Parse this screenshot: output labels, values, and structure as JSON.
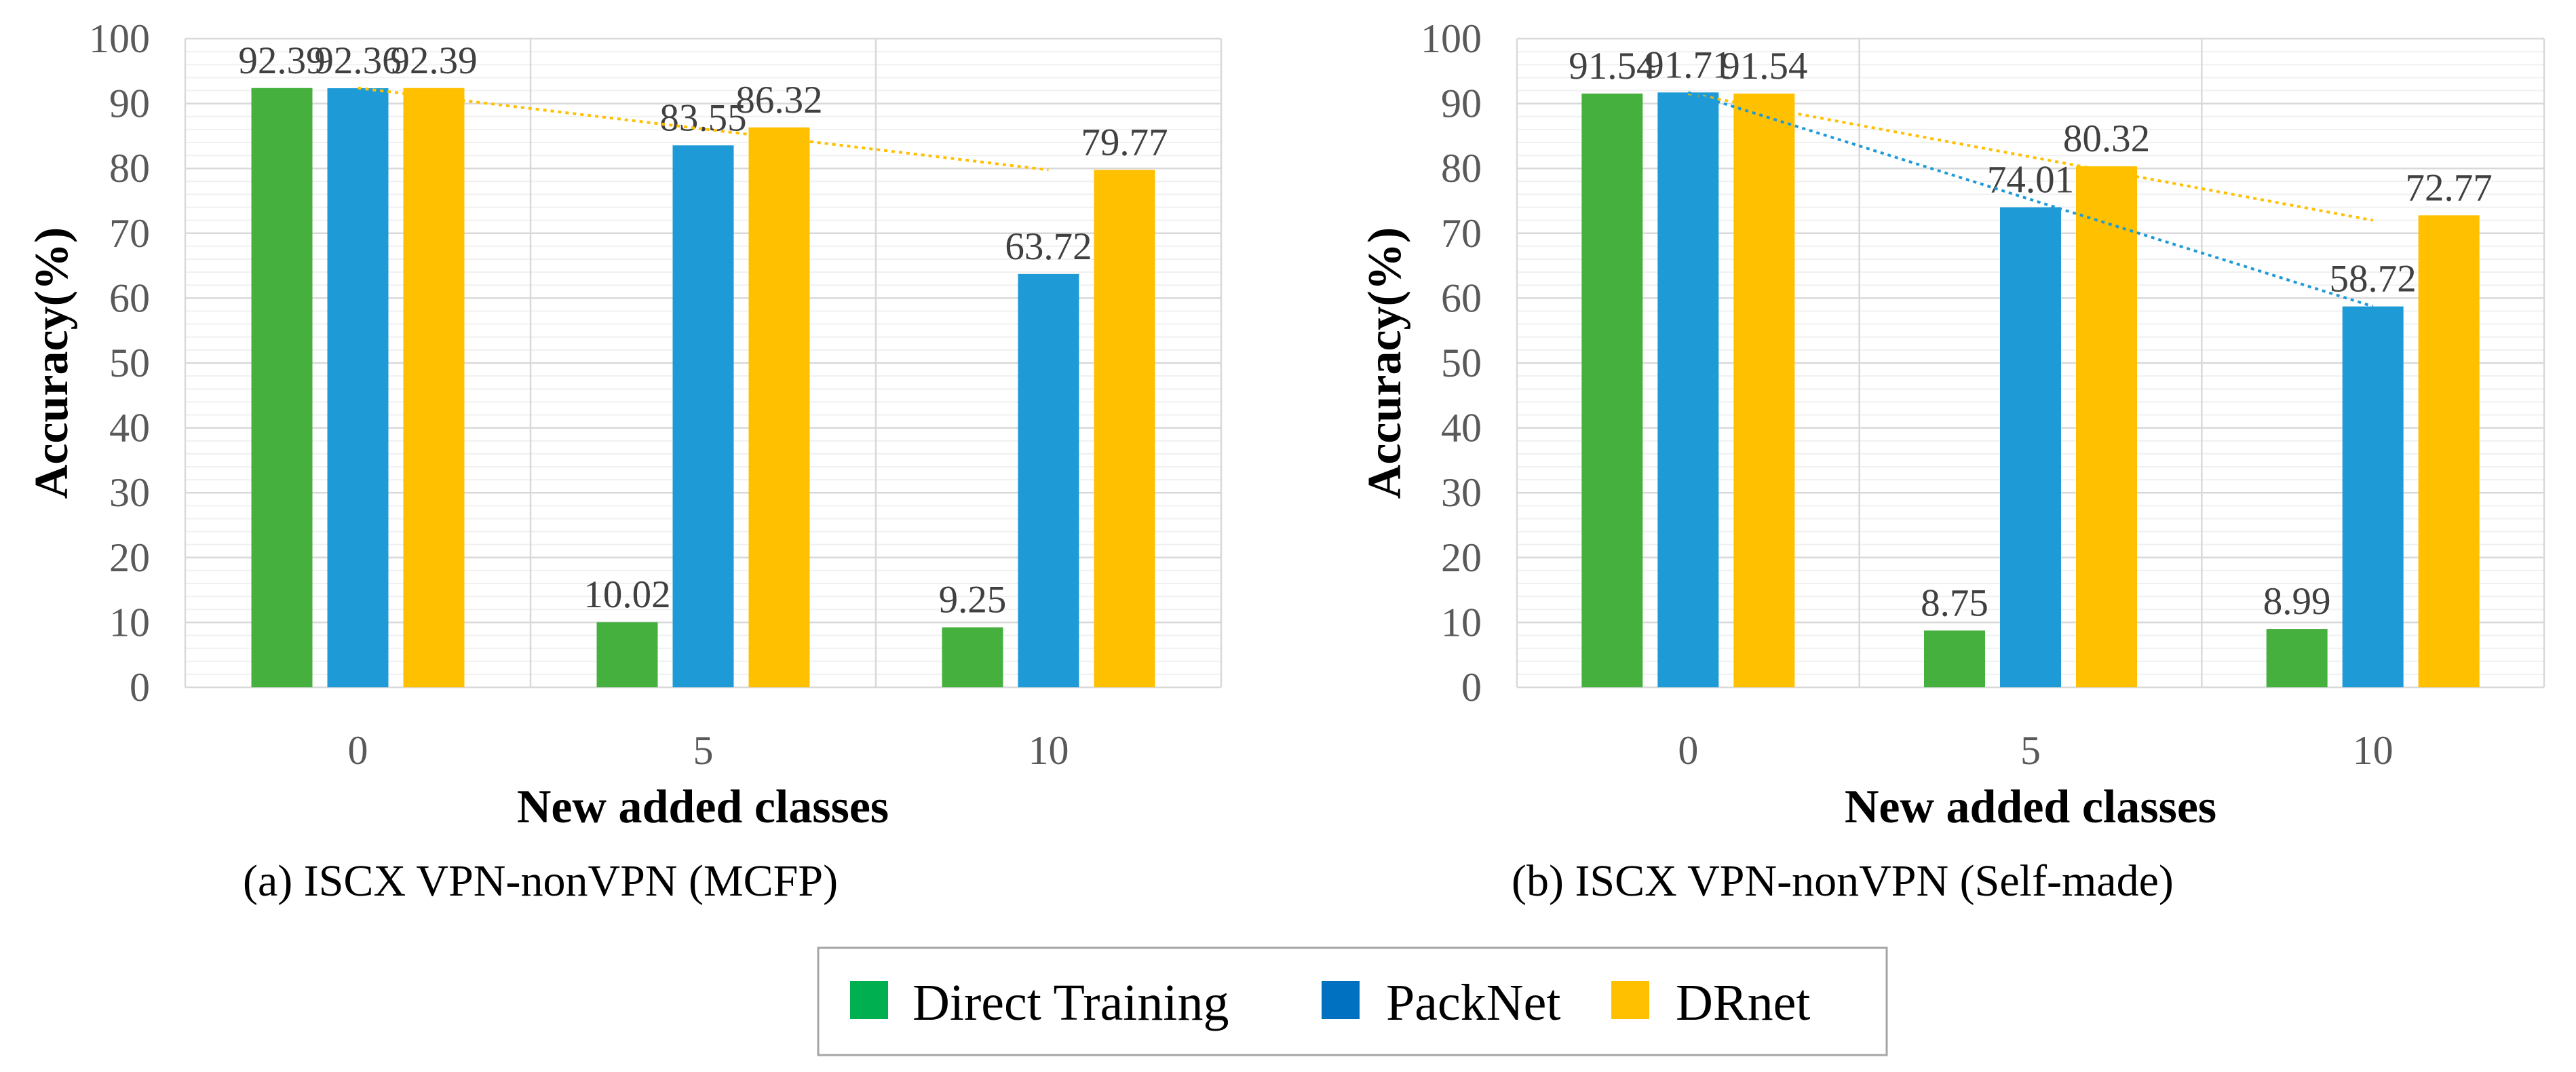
{
  "legend": [
    {
      "name": "Direct Training",
      "color": "#00B050"
    },
    {
      "name": "PackNet",
      "color": "#0070C0"
    },
    {
      "name": "DRnet",
      "color": "#FFC000"
    }
  ],
  "chart_data": [
    {
      "type": "bar",
      "caption": "(a)  ISCX VPN-nonVPN (MCFP)",
      "xlabel": "New added classes",
      "ylabel": "Accuracy(%)",
      "categories": [
        "0",
        "5",
        "10"
      ],
      "ylim": [
        0,
        100
      ],
      "yticks": [
        "0",
        "10",
        "20",
        "30",
        "40",
        "50",
        "60",
        "70",
        "80",
        "90",
        "100"
      ],
      "series": [
        {
          "name": "Direct Training",
          "color": "#45B03E",
          "values": [
            92.39,
            10.02,
            9.25
          ],
          "labels": [
            "92.39",
            "10.02",
            "9.25"
          ]
        },
        {
          "name": "PackNet",
          "color": "#1E9BD7",
          "values": [
            92.36,
            83.55,
            63.72
          ],
          "labels": [
            "92.36",
            "83.55",
            "63.72"
          ]
        },
        {
          "name": "DRnet",
          "color": "#FFC000",
          "values": [
            92.39,
            86.32,
            79.77
          ],
          "labels": [
            "92.39",
            "86.32",
            "79.77"
          ]
        }
      ],
      "trendlines": [
        {
          "series": "DRnet",
          "color": "#FFC000",
          "from": [
            0,
            92.39
          ],
          "to": [
            2,
            79.77
          ]
        }
      ]
    },
    {
      "type": "bar",
      "caption": "(b)   ISCX VPN-nonVPN (Self-made)",
      "xlabel": "New added classes",
      "ylabel": "Accuracy(%)",
      "categories": [
        "0",
        "5",
        "10"
      ],
      "ylim": [
        0,
        100
      ],
      "yticks": [
        "0",
        "10",
        "20",
        "30",
        "40",
        "50",
        "60",
        "70",
        "80",
        "90",
        "100"
      ],
      "series": [
        {
          "name": "Direct Training",
          "color": "#45B03E",
          "values": [
            91.54,
            8.75,
            8.99
          ],
          "labels": [
            "91.54",
            "8.75",
            "8.99"
          ]
        },
        {
          "name": "PackNet",
          "color": "#1E9BD7",
          "values": [
            91.71,
            74.01,
            58.72
          ],
          "labels": [
            "91.71",
            "74.01",
            "58.72"
          ]
        },
        {
          "name": "DRnet",
          "color": "#FFC000",
          "values": [
            91.54,
            80.32,
            72.77
          ],
          "labels": [
            "91.54",
            "80.32",
            "72.77"
          ]
        }
      ],
      "trendlines": [
        {
          "series": "DRnet",
          "color": "#FFC000",
          "from": [
            0,
            91.54
          ],
          "to": [
            2,
            72.0
          ]
        },
        {
          "series": "PackNet",
          "color": "#1E9BD7",
          "from": [
            0,
            91.71
          ],
          "to": [
            2,
            58.72
          ]
        }
      ]
    }
  ]
}
